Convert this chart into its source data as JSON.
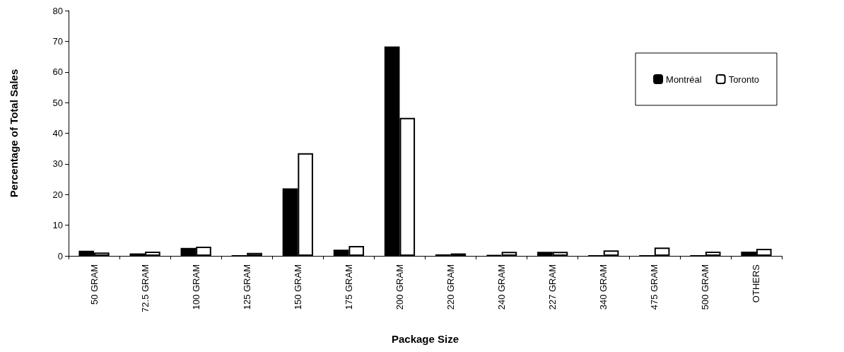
{
  "chart_data": {
    "type": "bar",
    "xlabel": "Package Size",
    "ylabel": "Percentage of Total Sales",
    "categories": [
      "50 GRAM",
      "72.5 GRAM",
      "100 GRAM",
      "125 GRAM",
      "150 GRAM",
      "175 GRAM",
      "200 GRAM",
      "220 GRAM",
      "240 GRAM",
      "227 GRAM",
      "340 GRAM",
      "475 GRAM",
      "500 GRAM",
      "OTHERS"
    ],
    "series": [
      {
        "name": "Montréal",
        "color": "#000000",
        "values": [
          1.7,
          0.8,
          2.6,
          0,
          22,
          2.0,
          68.3,
          0.5,
          0.2,
          1.3,
          0,
          0,
          0,
          1.4
        ]
      },
      {
        "name": "Toronto",
        "color": "#ffffff",
        "values": [
          1.1,
          1.4,
          3.0,
          1.0,
          33.5,
          3.2,
          45,
          0.8,
          1.3,
          1.3,
          1.8,
          2.7,
          1.4,
          2.3
        ]
      }
    ],
    "ylim": [
      0,
      80
    ],
    "yticks": [
      0,
      10,
      20,
      30,
      40,
      50,
      60,
      70,
      80
    ],
    "grid": false,
    "legend": "top right"
  }
}
